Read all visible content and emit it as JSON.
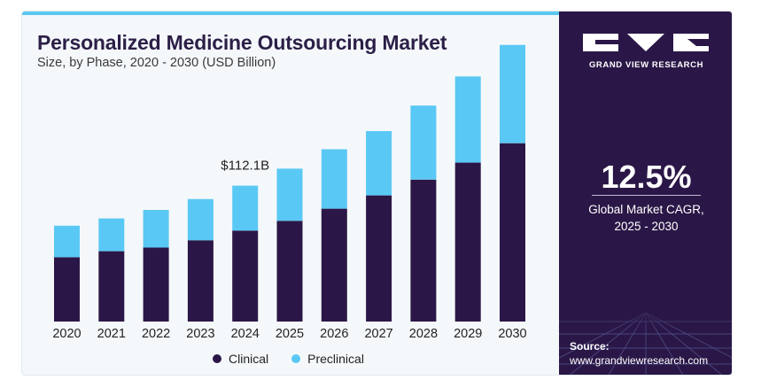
{
  "header": {
    "title": "Personalized Medicine Outsourcing Market",
    "subtitle": "Size, by Phase, 2020 - 2030 (USD Billion)"
  },
  "sidebar": {
    "brand": "GRAND VIEW RESEARCH",
    "cagr_value": "12.5%",
    "cagr_label_line1": "Global Market CAGR,",
    "cagr_label_line2": "2025 - 2030",
    "source_label": "Source:",
    "source_url": "www.grandviewresearch.com"
  },
  "colors": {
    "clinical": "#2b1747",
    "preclinical": "#5ac8f4",
    "title": "#2c1f47",
    "panel": "#2b1747"
  },
  "chart_data": {
    "type": "bar",
    "stacked": true,
    "categories": [
      "2020",
      "2021",
      "2022",
      "2023",
      "2024",
      "2025",
      "2026",
      "2027",
      "2028",
      "2029",
      "2030"
    ],
    "series": [
      {
        "name": "Clinical",
        "values": [
          53,
          58,
          61,
          67,
          75,
          83,
          93,
          104,
          117,
          131,
          147
        ]
      },
      {
        "name": "Preclinical",
        "values": [
          26,
          27,
          31,
          34,
          37,
          43,
          49,
          53,
          61,
          71,
          81
        ]
      }
    ],
    "annotations": [
      {
        "category": "2024",
        "text": "$112.1B"
      }
    ],
    "legend": "bottom-center",
    "grid": false,
    "yaxis_visible": false,
    "ylim": [
      0,
      230
    ]
  }
}
